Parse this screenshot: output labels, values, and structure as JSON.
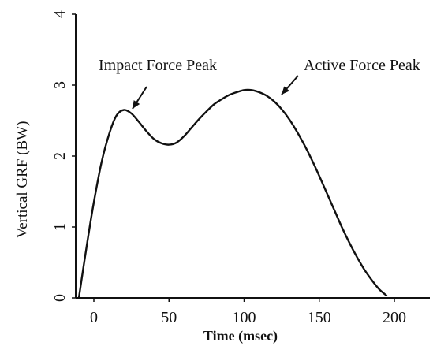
{
  "chart_data": {
    "type": "line",
    "xlabel": "Time (msec)",
    "ylabel": "Vertical GRF (BW)",
    "xlim": [
      -15,
      220
    ],
    "ylim": [
      0,
      4
    ],
    "xticks": [
      0,
      50,
      100,
      150,
      200
    ],
    "yticks": [
      0,
      1,
      2,
      3,
      4
    ],
    "grid": false,
    "series": [
      {
        "x": [
          -10,
          -5,
          0,
          5,
          10,
          15,
          20,
          25,
          30,
          35,
          40,
          45,
          50,
          55,
          60,
          65,
          70,
          75,
          80,
          85,
          90,
          95,
          100,
          105,
          110,
          115,
          120,
          125,
          130,
          135,
          140,
          145,
          150,
          155,
          160,
          165,
          170,
          175,
          180,
          185,
          190,
          195
        ],
        "y": [
          0.0,
          0.7,
          1.35,
          1.9,
          2.3,
          2.57,
          2.65,
          2.6,
          2.48,
          2.35,
          2.24,
          2.18,
          2.16,
          2.19,
          2.28,
          2.4,
          2.52,
          2.63,
          2.73,
          2.8,
          2.86,
          2.9,
          2.93,
          2.93,
          2.9,
          2.85,
          2.77,
          2.66,
          2.52,
          2.35,
          2.16,
          1.95,
          1.72,
          1.48,
          1.24,
          1.0,
          0.78,
          0.58,
          0.4,
          0.25,
          0.12,
          0.03
        ]
      }
    ],
    "annotations": [
      {
        "text": "Impact Force Peak",
        "x": 23,
        "y": 2.65
      },
      {
        "text": "Active Force Peak",
        "x": 108,
        "y": 2.93
      }
    ]
  }
}
